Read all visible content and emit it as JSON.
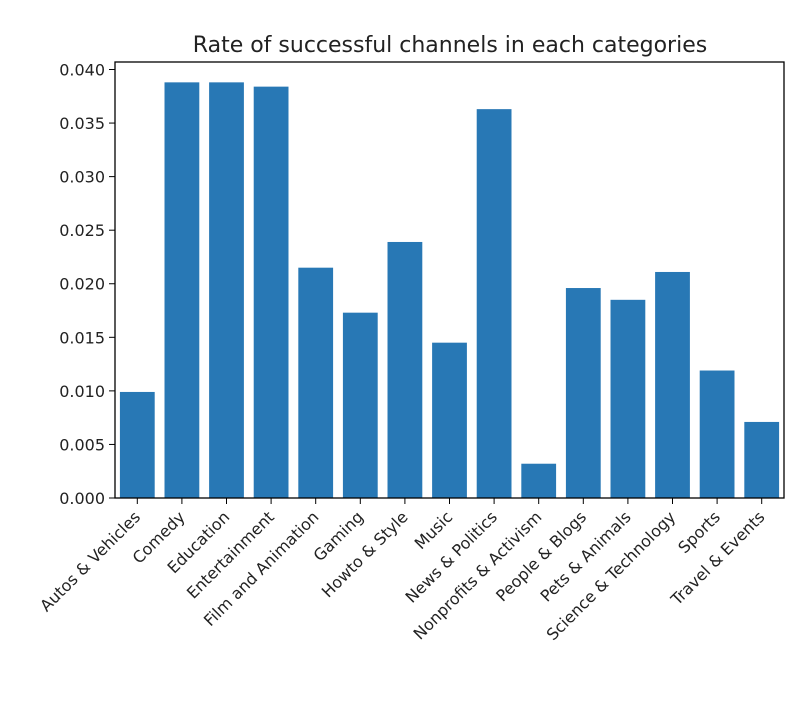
{
  "chart_data": {
    "type": "bar",
    "title": "Rate of successful channels in each categories",
    "xlabel": "",
    "ylabel": "",
    "categories": [
      "Autos & Vehicles",
      "Comedy",
      "Education",
      "Entertainment",
      "Film and Animation",
      "Gaming",
      "Howto & Style",
      "Music",
      "News & Politics",
      "Nonprofits & Activism",
      "People & Blogs",
      "Pets & Animals",
      "Science & Technology",
      "Sports",
      "Travel & Events"
    ],
    "values": [
      0.0099,
      0.0388,
      0.0388,
      0.0384,
      0.0215,
      0.0173,
      0.0239,
      0.0145,
      0.0363,
      0.0032,
      0.0196,
      0.0185,
      0.0211,
      0.0119,
      0.0071
    ],
    "ylim": [
      0,
      0.0407
    ],
    "yticks": [
      "0.000",
      "0.005",
      "0.010",
      "0.015",
      "0.020",
      "0.025",
      "0.030",
      "0.035",
      "0.040"
    ],
    "grid": false,
    "bar_color": "#2878b5"
  }
}
